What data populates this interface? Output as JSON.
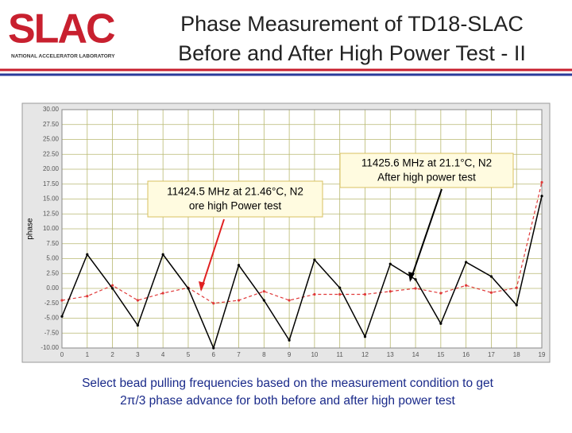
{
  "header": {
    "logo": "SLAC",
    "logo_subtitle": "NATIONAL ACCELERATOR LABORATORY",
    "title": [
      "Phase Measurement of TD18-SLAC",
      "Before and After High Power Test - II"
    ]
  },
  "caption": [
    "Select bead pulling frequencies based on the measurement condition to get",
    "2π/3 phase advance for both before and after high power test"
  ],
  "chart_data": {
    "type": "line",
    "ylabel": "phase",
    "x": [
      0,
      1,
      2,
      3,
      4,
      5,
      6,
      7,
      8,
      9,
      10,
      11,
      12,
      13,
      14,
      15,
      16,
      17,
      18,
      19
    ],
    "xlim": [
      0,
      19
    ],
    "xticks": [
      0,
      1,
      2,
      3,
      4,
      5,
      6,
      7,
      8,
      9,
      10,
      11,
      12,
      13,
      14,
      15,
      16,
      17,
      18,
      19
    ],
    "ylim": [
      -10,
      30
    ],
    "yticks": [
      {
        "value": -10,
        "label": "-10.00"
      },
      {
        "value": -7.5,
        "label": "-7.50"
      },
      {
        "value": -5,
        "label": "-5.00"
      },
      {
        "value": -2.5,
        "label": "-2.50"
      },
      {
        "value": 0,
        "label": "0.00"
      },
      {
        "value": 2.5,
        "label": "2.50"
      },
      {
        "value": 5,
        "label": "5.00"
      },
      {
        "value": 7.5,
        "label": "7.50"
      },
      {
        "value": 10,
        "label": "10.00"
      },
      {
        "value": 12.5,
        "label": "12.50"
      },
      {
        "value": 15,
        "label": "15.00"
      },
      {
        "value": 17.5,
        "label": "17.50"
      },
      {
        "value": 20,
        "label": "20.00"
      },
      {
        "value": 22.5,
        "label": "22.50"
      },
      {
        "value": 25,
        "label": "25.00"
      },
      {
        "value": 27.5,
        "label": "27.50"
      },
      {
        "value": 30,
        "label": "30.00"
      }
    ],
    "grid": true,
    "series": [
      {
        "color": "#e03a3a",
        "dashed": true,
        "values": [
          -2,
          -1.3,
          0.5,
          -2,
          -0.8,
          0.1,
          -2.5,
          -2,
          -0.5,
          -2,
          -1,
          -1,
          -1,
          -0.5,
          0,
          -0.8,
          0.5,
          -0.7,
          0.1,
          17.8
        ]
      },
      {
        "color": "#000000",
        "dashed": false,
        "values": [
          -4.7,
          5.7,
          0,
          -6.2,
          5.7,
          0,
          -10,
          3.9,
          -2,
          -8.7,
          4.8,
          0.1,
          -8.1,
          4.1,
          1.5,
          -5.9,
          4.4,
          2,
          -2.8,
          15.5
        ]
      }
    ],
    "annotations": [
      [
        "11424.5 MHz at 21.46°C, N2",
        "ore high Power test"
      ],
      [
        "11425.6 MHz at 21.1°C, N2",
        "After high power test"
      ]
    ]
  }
}
